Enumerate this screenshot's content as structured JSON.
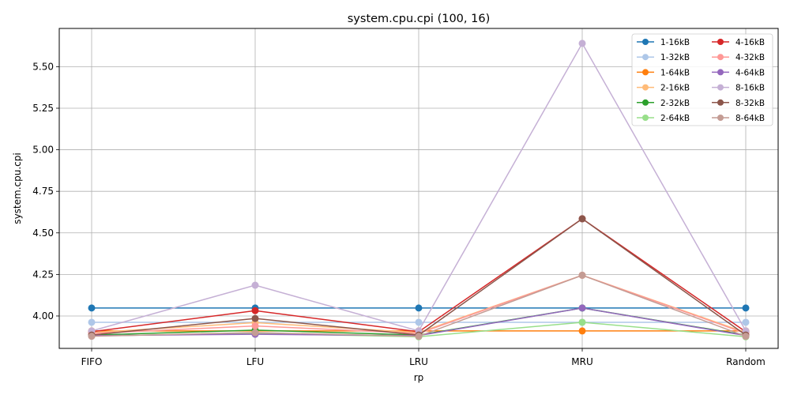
{
  "chart_data": {
    "type": "line",
    "title": "system.cpu.cpi (100, 16)",
    "xlabel": "rp",
    "ylabel": "system.cpu.cpi",
    "categories": [
      "FIFO",
      "LFU",
      "LRU",
      "MRU",
      "Random"
    ],
    "ylim": [
      3.805,
      5.73
    ],
    "yticks": [
      4.0,
      4.25,
      4.5,
      4.75,
      5.0,
      5.25,
      5.5
    ],
    "ytick_labels": [
      "4.00",
      "4.25",
      "4.50",
      "4.75",
      "5.00",
      "5.25",
      "5.50"
    ],
    "grid": true,
    "legend_position": "top-right",
    "legend_columns": 2,
    "series": [
      {
        "name": "1-16kB",
        "color": "#1f77b4",
        "values": [
          4.048,
          4.048,
          4.048,
          4.048,
          4.048
        ]
      },
      {
        "name": "1-32kB",
        "color": "#aec7e8",
        "values": [
          3.962,
          3.962,
          3.962,
          3.962,
          3.962
        ]
      },
      {
        "name": "1-64kB",
        "color": "#ff7f0e",
        "values": [
          3.91,
          3.91,
          3.91,
          3.91,
          3.91
        ]
      },
      {
        "name": "2-16kB",
        "color": "#ffbb78",
        "values": [
          3.9,
          3.96,
          3.9,
          4.245,
          3.9
        ]
      },
      {
        "name": "2-32kB",
        "color": "#2ca02c",
        "values": [
          3.885,
          3.915,
          3.885,
          4.048,
          3.885
        ]
      },
      {
        "name": "2-64kB",
        "color": "#98df8a",
        "values": [
          3.88,
          3.895,
          3.875,
          3.962,
          3.875
        ]
      },
      {
        "name": "4-16kB",
        "color": "#d62728",
        "values": [
          3.905,
          4.032,
          3.905,
          4.585,
          3.905
        ]
      },
      {
        "name": "4-32kB",
        "color": "#ff9896",
        "values": [
          3.895,
          3.94,
          3.895,
          4.245,
          3.895
        ]
      },
      {
        "name": "4-64kB",
        "color": "#9467bd",
        "values": [
          3.882,
          3.89,
          3.882,
          4.048,
          3.882
        ]
      },
      {
        "name": "8-16kB",
        "color": "#c5b0d5",
        "values": [
          3.91,
          4.185,
          3.91,
          5.64,
          3.91
        ]
      },
      {
        "name": "8-32kB",
        "color": "#8c564b",
        "values": [
          3.885,
          3.985,
          3.885,
          4.585,
          3.885
        ]
      },
      {
        "name": "8-64kB",
        "color": "#c49c94",
        "values": [
          3.878,
          3.9,
          3.878,
          4.245,
          3.878
        ]
      }
    ]
  }
}
